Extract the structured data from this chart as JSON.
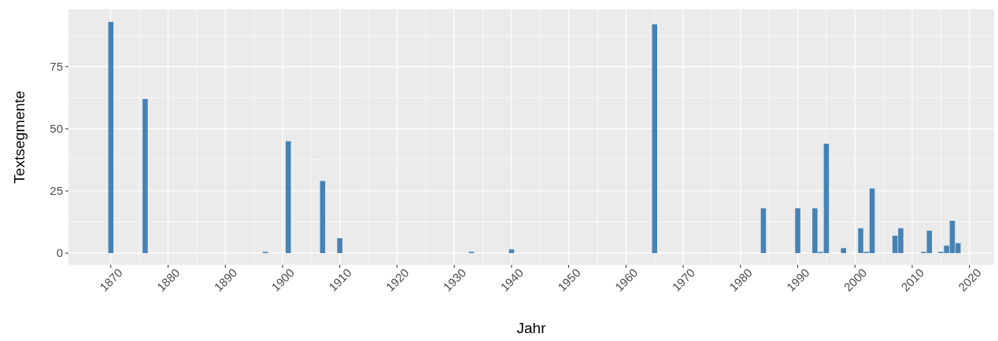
{
  "chart_data": {
    "type": "bar",
    "xlabel": "Jahr",
    "ylabel": "Textsegmente",
    "x": [
      1870,
      1876,
      1897,
      1901,
      1907,
      1910,
      1933,
      1940,
      1965,
      1984,
      1990,
      1993,
      1994,
      1995,
      1998,
      2001,
      2002,
      2003,
      2007,
      2008,
      2012,
      2013,
      2015,
      2016,
      2017,
      2018
    ],
    "values": [
      93,
      62,
      0.5,
      45,
      29,
      6,
      0.5,
      1.5,
      92,
      18,
      18,
      18,
      0.5,
      44,
      2,
      10,
      0.5,
      26,
      7,
      10,
      0.5,
      9,
      0.5,
      3,
      13,
      4
    ],
    "color": "#4682b4",
    "xlim": [
      1862.6,
      2024.3
    ],
    "xticks": [
      1870,
      1880,
      1890,
      1900,
      1910,
      1920,
      1930,
      1940,
      1950,
      1960,
      1970,
      1980,
      1990,
      2000,
      2010,
      2020
    ],
    "ylim": [
      -4.7,
      98
    ],
    "yticks": [
      0,
      25,
      50,
      75
    ],
    "grid": true
  }
}
